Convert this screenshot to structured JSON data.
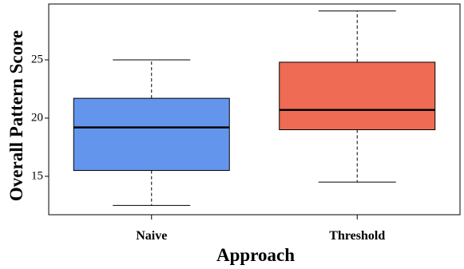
{
  "chart_data": {
    "type": "boxplot",
    "title": "",
    "xlabel": "Approach",
    "ylabel": "Overall Pattern Score",
    "ylim": [
      11.7,
      29.8
    ],
    "yticks": [
      15,
      20,
      25
    ],
    "grid": false,
    "categories": [
      "Naive",
      "Threshold"
    ],
    "boxes": [
      {
        "category": "Naive",
        "whisker_low": 12.5,
        "q1": 15.5,
        "median": 19.2,
        "q3": 21.7,
        "whisker_high": 25.0,
        "color": "#6495ED"
      },
      {
        "category": "Threshold",
        "whisker_low": 14.5,
        "q1": 19.0,
        "median": 20.7,
        "q3": 24.8,
        "whisker_high": 29.2,
        "color": "#EF6B54"
      }
    ]
  }
}
